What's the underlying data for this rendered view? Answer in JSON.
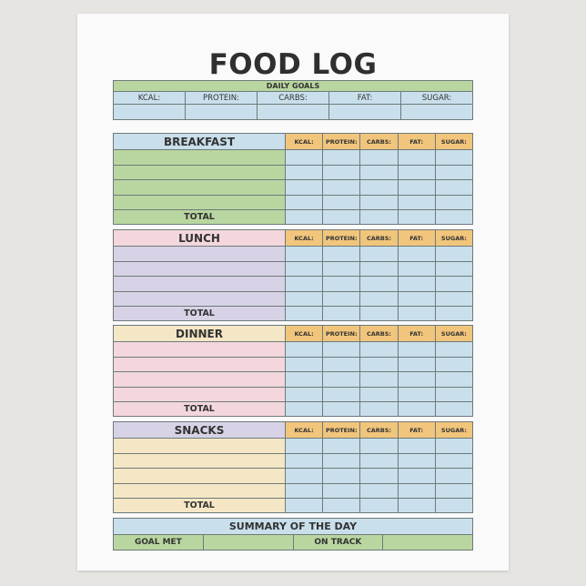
{
  "title": "FOOD LOG",
  "colors": {
    "green": "#b9d6a0",
    "blue": "#c9dfeb",
    "orange": "#f1c57c",
    "pink": "#f3d7dd",
    "purple": "#d8d2e6",
    "yellow": "#f5e7c6"
  },
  "daily_goals": {
    "header": "DAILY GOALS",
    "labels": [
      "KCAL:",
      "PROTEIN:",
      "CARBS:",
      "FAT:",
      "SUGAR:"
    ]
  },
  "nutrient_columns": [
    "KCAL:",
    "PROTEIN:",
    "CARBS:",
    "FAT:",
    "SUGAR:"
  ],
  "meals": [
    {
      "name": "BREAKFAST",
      "total_label": "TOTAL",
      "header_color": "blue",
      "row_color": "green"
    },
    {
      "name": "LUNCH",
      "total_label": "TOTAL",
      "header_color": "pink",
      "row_color": "purple"
    },
    {
      "name": "DINNER",
      "total_label": "TOTAL",
      "header_color": "yellow",
      "row_color": "pink"
    },
    {
      "name": "SNACKS",
      "total_label": "TOTAL",
      "header_color": "purple",
      "row_color": "yellow"
    }
  ],
  "summary": {
    "header": "SUMMARY OF THE DAY",
    "goal_met": "GOAL MET",
    "on_track": "ON TRACK"
  }
}
